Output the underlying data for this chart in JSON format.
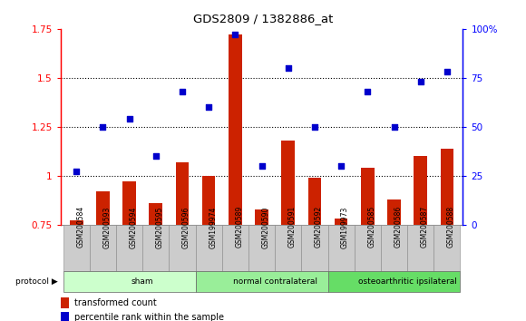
{
  "title": "GDS2809 / 1382886_at",
  "categories": [
    "GSM200584",
    "GSM200593",
    "GSM200594",
    "GSM200595",
    "GSM200596",
    "GSM199974",
    "GSM200589",
    "GSM200590",
    "GSM200591",
    "GSM200592",
    "GSM199973",
    "GSM200585",
    "GSM200586",
    "GSM200587",
    "GSM200588"
  ],
  "bar_values": [
    0.77,
    0.92,
    0.97,
    0.86,
    1.07,
    1.0,
    1.72,
    0.83,
    1.18,
    0.99,
    0.78,
    1.04,
    0.88,
    1.1,
    1.14
  ],
  "scatter_percentiles": [
    27,
    50,
    54,
    35,
    68,
    60,
    97,
    30,
    80,
    50,
    30,
    68,
    50,
    73,
    78
  ],
  "bar_color": "#cc2200",
  "scatter_color": "#0000cc",
  "ylim_left": [
    0.75,
    1.75
  ],
  "ylim_right": [
    0,
    100
  ],
  "yticks_left": [
    0.75,
    1.0,
    1.25,
    1.5,
    1.75
  ],
  "yticks_left_labels": [
    "0.75",
    "1",
    "1.25",
    "1.5",
    "1.75"
  ],
  "yticks_right": [
    0,
    25,
    50,
    75,
    100
  ],
  "yticks_right_labels": [
    "0",
    "25",
    "50",
    "75",
    "100%"
  ],
  "dotted_lines": [
    1.0,
    1.25,
    1.5
  ],
  "groups": [
    {
      "label": "sham",
      "start": 0,
      "end": 5,
      "color": "#ccffcc"
    },
    {
      "label": "normal contralateral",
      "start": 5,
      "end": 10,
      "color": "#99ee99"
    },
    {
      "label": "osteoarthritic ipsilateral",
      "start": 10,
      "end": 15,
      "color": "#66dd66"
    }
  ],
  "protocol_label": "protocol",
  "legend_bar_label": "transformed count",
  "legend_scatter_label": "percentile rank within the sample",
  "bar_color_legend": "#cc2200",
  "scatter_color_legend": "#0000cc",
  "bar_width": 0.5,
  "scatter_marker_size": 22,
  "cell_color": "#cccccc",
  "cell_edge_color": "#888888",
  "n_samples": 15
}
